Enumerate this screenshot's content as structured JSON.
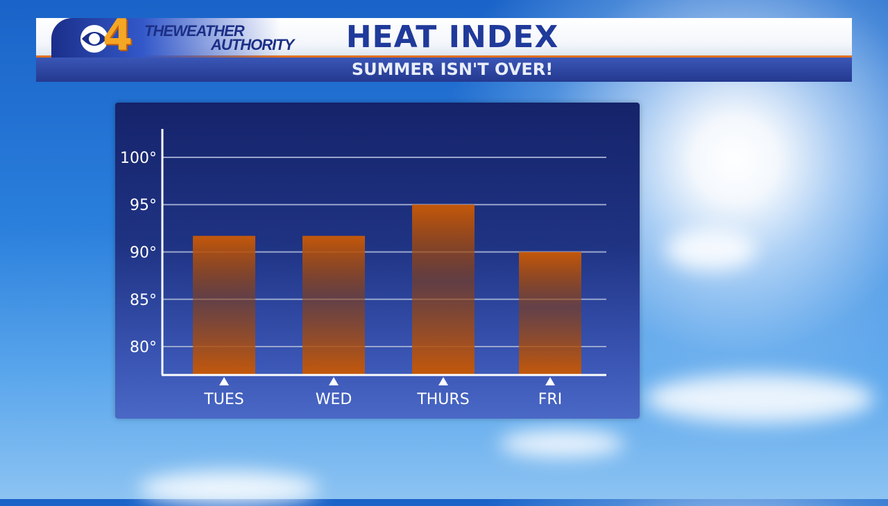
{
  "banner": {
    "channel": "4",
    "brand_line1": "THEWEATHER",
    "brand_line2": "AUTHORITY",
    "title": "HEAT INDEX",
    "subtitle": "SUMMER ISN'T OVER!"
  },
  "colors": {
    "bar": "#c4580a",
    "bar_highlight": "#8f3d05",
    "grid": "#9aa6cc",
    "axis": "#ffffff"
  },
  "chart_data": {
    "type": "bar",
    "categories": [
      "TUES",
      "WED",
      "THURS",
      "FRI"
    ],
    "values": [
      91.7,
      91.7,
      95,
      90
    ],
    "ylim": [
      77,
      103
    ],
    "yticks": [
      80,
      85,
      90,
      95,
      100
    ],
    "ytick_labels": [
      "80°",
      "85°",
      "90°",
      "95°",
      "100°"
    ],
    "grid": true,
    "xlabel": "",
    "ylabel": ""
  }
}
